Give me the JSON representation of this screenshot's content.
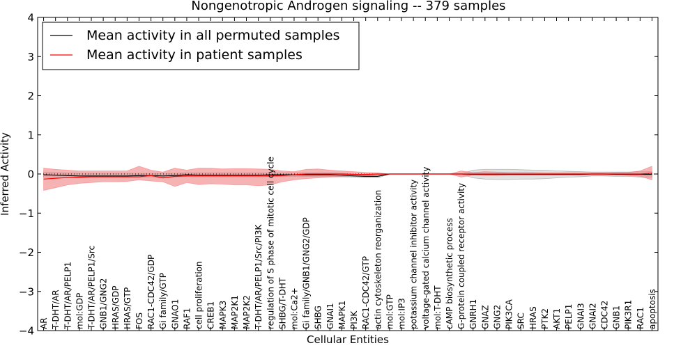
{
  "chart_data": {
    "type": "line",
    "title": "Nongenotropic Androgen signaling -- 379 samples",
    "xlabel": "Cellular Entities",
    "ylabel": "Inferred Activity",
    "ylim": [
      -4,
      4
    ],
    "yticks": [
      4,
      3,
      2,
      1,
      0,
      -1,
      -2,
      -3,
      -4
    ],
    "ytick_labels": [
      "4",
      "3",
      "2",
      "1",
      "0",
      "−1",
      "−2",
      "−3",
      "−4"
    ],
    "legend_position": "upper-left",
    "colors": {
      "permuted": "#000000",
      "patient": "#ff0000",
      "permuted_band": "#bfbfbf",
      "patient_band": "#f08080"
    },
    "categories": [
      "AR",
      "T-DHT/AR",
      "T-DHT/AR/PELP1",
      "mol:GDP",
      "T-DHT/AR/PELP1/Src",
      "GNB1/GNG2",
      "HRAS/GDP",
      "HRAS/GTP",
      "FOS",
      "RAC1-CDC42/GDP",
      "Gi family/GTP",
      "GNAO1",
      "RAF1",
      "cell proliferation",
      "CREB1",
      "MAPK3",
      "MAP2K1",
      "MAP2K2",
      "T-DHT/AR/PELP1/Src/PI3K",
      "regulation of S phase of mitotic cell cycle",
      "SHBG/T-DHT",
      "mol:Ca2+",
      "Gi family/GNB1/GNG2/GDP",
      "SHBG",
      "GNAI1",
      "MAPK1",
      "PI3K",
      "RAC1-CDC42/GTP",
      "actin cytoskeleton reorganization",
      "mol:GTP",
      "mol:IP3",
      "potassium channel inhibitor activity",
      "voltage-gated calcium channel activity",
      "mol:T-DHT",
      "cAMP biosynthetic process",
      "G-protein coupled receptor activity",
      "GNRH1",
      "GNAZ",
      "GNG2",
      "PIK3CA",
      "SRC",
      "HRAS",
      "PTK2",
      "AKT1",
      "PELP1",
      "GNAI3",
      "GNAI2",
      "CDC42",
      "GNB1",
      "PIK3R1",
      "RAC1",
      "apoptosis"
    ],
    "series": [
      {
        "name": "Mean activity in all permuted samples",
        "values": [
          -0.02,
          -0.03,
          -0.04,
          -0.05,
          -0.05,
          -0.05,
          -0.05,
          -0.05,
          -0.04,
          -0.04,
          -0.05,
          -0.04,
          -0.02,
          -0.03,
          -0.03,
          -0.03,
          -0.03,
          -0.03,
          -0.03,
          -0.02,
          -0.02,
          -0.02,
          -0.02,
          -0.02,
          -0.02,
          -0.03,
          -0.05,
          -0.06,
          -0.06,
          0.0,
          0.0,
          0.0,
          0.0,
          0.0,
          0.0,
          0.0,
          -0.01,
          -0.01,
          -0.01,
          -0.01,
          -0.01,
          -0.01,
          -0.01,
          -0.01,
          -0.01,
          -0.01,
          0.0,
          0.0,
          -0.01,
          -0.01,
          -0.01,
          -0.01
        ],
        "band_upper": [
          0.05,
          0.04,
          0.03,
          0.02,
          0.02,
          0.02,
          0.02,
          0.02,
          0.02,
          0.02,
          0.02,
          0.02,
          0.03,
          0.03,
          0.03,
          0.03,
          0.03,
          0.03,
          0.03,
          0.03,
          0.03,
          0.03,
          0.03,
          0.03,
          0.03,
          0.02,
          0.0,
          -0.02,
          -0.02,
          0.0,
          0.0,
          0.0,
          0.0,
          0.0,
          0.0,
          0.0,
          0.1,
          0.12,
          0.12,
          0.12,
          0.11,
          0.1,
          0.1,
          0.08,
          0.07,
          0.06,
          0.05,
          0.05,
          0.05,
          0.05,
          0.06,
          0.06
        ],
        "band_lower": [
          -0.08,
          -0.09,
          -0.1,
          -0.1,
          -0.1,
          -0.1,
          -0.1,
          -0.1,
          -0.09,
          -0.08,
          -0.08,
          -0.08,
          -0.07,
          -0.08,
          -0.08,
          -0.08,
          -0.08,
          -0.08,
          -0.08,
          -0.07,
          -0.06,
          -0.06,
          -0.06,
          -0.06,
          -0.06,
          -0.07,
          -0.08,
          -0.1,
          -0.1,
          0.0,
          0.0,
          0.0,
          0.0,
          0.0,
          0.0,
          0.0,
          -0.1,
          -0.13,
          -0.14,
          -0.14,
          -0.13,
          -0.13,
          -0.12,
          -0.1,
          -0.08,
          -0.07,
          -0.05,
          -0.05,
          -0.06,
          -0.06,
          -0.08,
          -0.08
        ]
      },
      {
        "name": "Mean activity in patient samples",
        "values": [
          -0.13,
          -0.11,
          -0.09,
          -0.08,
          -0.07,
          -0.07,
          -0.07,
          -0.07,
          -0.07,
          -0.04,
          -0.1,
          -0.06,
          -0.05,
          -0.05,
          -0.05,
          -0.05,
          -0.05,
          -0.05,
          -0.05,
          -0.05,
          -0.04,
          -0.02,
          0.0,
          0.0,
          0.0,
          0.0,
          -0.01,
          -0.01,
          0.0,
          0.0,
          0.0,
          0.0,
          0.0,
          0.0,
          0.0,
          0.0,
          0.0,
          0.0,
          0.0,
          0.0,
          0.0,
          0.0,
          0.0,
          0.0,
          0.0,
          0.0,
          0.0,
          0.0,
          0.0,
          0.0,
          0.0,
          0.02
        ],
        "band_upper": [
          0.15,
          0.12,
          0.1,
          0.08,
          0.08,
          0.08,
          0.08,
          0.08,
          0.2,
          0.1,
          0.05,
          0.15,
          0.1,
          0.15,
          0.15,
          0.13,
          0.14,
          0.14,
          0.13,
          0.12,
          0.08,
          0.06,
          0.12,
          0.13,
          0.1,
          0.08,
          0.06,
          0.04,
          0.03,
          0.0,
          0.0,
          0.0,
          0.0,
          0.0,
          0.0,
          0.08,
          0.04,
          0.06,
          0.05,
          0.04,
          0.04,
          0.04,
          0.03,
          0.03,
          0.03,
          0.03,
          0.03,
          0.03,
          0.04,
          0.04,
          0.08,
          0.2
        ],
        "band_lower": [
          -0.42,
          -0.35,
          -0.28,
          -0.24,
          -0.22,
          -0.2,
          -0.2,
          -0.19,
          -0.15,
          -0.18,
          -0.2,
          -0.32,
          -0.22,
          -0.27,
          -0.25,
          -0.26,
          -0.28,
          -0.28,
          -0.3,
          -0.28,
          -0.2,
          -0.15,
          -0.12,
          -0.1,
          -0.08,
          -0.07,
          -0.06,
          -0.05,
          -0.03,
          0.0,
          0.0,
          0.0,
          0.0,
          0.0,
          0.0,
          -0.08,
          -0.03,
          -0.04,
          -0.04,
          -0.03,
          -0.03,
          -0.03,
          -0.03,
          -0.03,
          -0.03,
          -0.03,
          -0.03,
          -0.03,
          -0.03,
          -0.04,
          -0.06,
          -0.15
        ]
      }
    ]
  }
}
